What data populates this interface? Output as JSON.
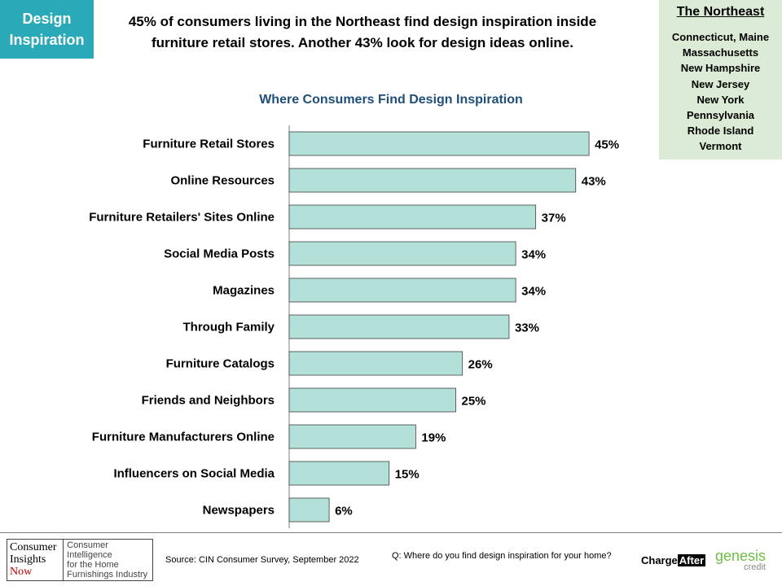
{
  "tag": {
    "line1": "Design",
    "line2": "Inspiration",
    "color": "#2aa9b9"
  },
  "headline": {
    "line1": "45% of consumers living in the Northeast find design inspiration inside",
    "line2": "furniture retail stores. Another 43% look for design ideas online."
  },
  "region": {
    "title": "The Northeast",
    "states": [
      "Connecticut, Maine",
      "Massachusetts",
      "New Hampshire",
      "New Jersey",
      "New York",
      "Pennsylvania",
      "Rhode Island",
      "Vermont"
    ]
  },
  "chart_data": {
    "type": "bar",
    "orientation": "horizontal",
    "title": "Where Consumers Find Design Inspiration",
    "categories": [
      "Furniture Retail Stores",
      "Online Resources",
      "Furniture Retailers' Sites Online",
      "Social Media Posts",
      "Magazines",
      "Through Family",
      "Furniture Catalogs",
      "Friends and Neighbors",
      "Furniture Manufacturers Online",
      "Influencers on Social Media",
      "Newspapers"
    ],
    "values": [
      45,
      43,
      37,
      34,
      34,
      33,
      26,
      25,
      19,
      15,
      6
    ],
    "labels": [
      "45%",
      "43%",
      "37%",
      "34%",
      "34%",
      "33%",
      "26%",
      "25%",
      "19%",
      "15%",
      "6%"
    ],
    "unit": "%",
    "xlim": [
      0,
      50
    ],
    "bar_color": "#b3e0d8",
    "grid": false
  },
  "footer": {
    "logo": {
      "w1": "Consumer",
      "w2": "Insights",
      "w3": "Now",
      "tag1": "Consumer Intelligence",
      "tag2": "for the Home",
      "tag3": "Furnishings Industry"
    },
    "source": "Source: CIN Consumer Survey, September  2022",
    "question": "Q: Where do you find design inspiration for your home?",
    "chargeafter": {
      "part1": "Charge",
      "part2": "After"
    },
    "genesis": {
      "name": "genesis",
      "sub": "credit"
    }
  }
}
